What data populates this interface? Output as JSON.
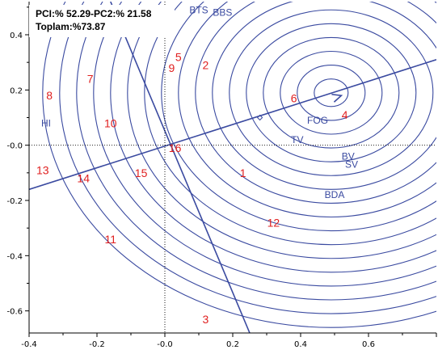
{
  "chart_data": {
    "type": "scatter",
    "title_lines": [
      "PCI:% 52.29-PC2:% 21.58",
      "Toplam:%73.87"
    ],
    "xlim": [
      -0.4,
      0.8
    ],
    "ylim": [
      -0.68,
      0.52
    ],
    "x_ticks": [
      {
        "value": -0.4,
        "label": "-0.4"
      },
      {
        "value": -0.2,
        "label": "-0.2"
      },
      {
        "value": 0.0,
        "label": "-0.0"
      },
      {
        "value": 0.2,
        "label": "0.2"
      },
      {
        "value": 0.4,
        "label": "0.4"
      },
      {
        "value": 0.6,
        "label": "0.6"
      }
    ],
    "y_ticks": [
      {
        "value": 0.4,
        "label": "0.4"
      },
      {
        "value": 0.2,
        "label": "0.2"
      },
      {
        "value": 0.0,
        "label": "-0.0"
      },
      {
        "value": -0.2,
        "label": "-0.2"
      },
      {
        "value": -0.4,
        "label": "-0.4"
      },
      {
        "value": -0.6,
        "label": "-0.6"
      }
    ],
    "genotypes": [
      {
        "label": "1",
        "x": 0.23,
        "y": -0.1
      },
      {
        "label": "2",
        "x": 0.12,
        "y": 0.29
      },
      {
        "label": "3",
        "x": 0.12,
        "y": -0.63
      },
      {
        "label": "4",
        "x": 0.53,
        "y": 0.11
      },
      {
        "label": "5",
        "x": 0.04,
        "y": 0.32
      },
      {
        "label": "6",
        "x": 0.38,
        "y": 0.17
      },
      {
        "label": "7",
        "x": -0.22,
        "y": 0.24
      },
      {
        "label": "8",
        "x": -0.34,
        "y": 0.18
      },
      {
        "label": "9",
        "x": 0.02,
        "y": 0.28
      },
      {
        "label": "10",
        "x": -0.16,
        "y": 0.08
      },
      {
        "label": "11",
        "x": -0.16,
        "y": -0.34
      },
      {
        "label": "12",
        "x": 0.32,
        "y": -0.28
      },
      {
        "label": "13",
        "x": -0.36,
        "y": -0.09
      },
      {
        "label": "14",
        "x": -0.24,
        "y": -0.12
      },
      {
        "label": "15",
        "x": -0.07,
        "y": -0.1
      },
      {
        "label": "16",
        "x": 0.03,
        "y": -0.01
      }
    ],
    "traits": [
      {
        "label": "BTS",
        "x": 0.1,
        "y": 0.49
      },
      {
        "label": "BBS",
        "x": 0.17,
        "y": 0.48
      },
      {
        "label": "HI",
        "x": -0.35,
        "y": 0.08
      },
      {
        "label": "FOG",
        "x": 0.45,
        "y": 0.09
      },
      {
        "label": "TV",
        "x": 0.39,
        "y": 0.02
      },
      {
        "label": "BV",
        "x": 0.54,
        "y": -0.04
      },
      {
        "label": "SV",
        "x": 0.55,
        "y": -0.07
      },
      {
        "label": "BDA",
        "x": 0.5,
        "y": -0.18
      }
    ],
    "ideal_point": {
      "x": 0.49,
      "y": 0.19
    },
    "circle_radii": [
      0.05,
      0.1,
      0.15,
      0.2,
      0.25,
      0.3,
      0.35,
      0.4,
      0.45,
      0.5,
      0.55,
      0.6,
      0.65,
      0.7,
      0.75,
      0.8,
      0.85
    ],
    "colors": {
      "genotype": "#e02020",
      "trait": "#3a4aa0",
      "lines": "#3a4aa0",
      "axis": "#000000"
    }
  }
}
